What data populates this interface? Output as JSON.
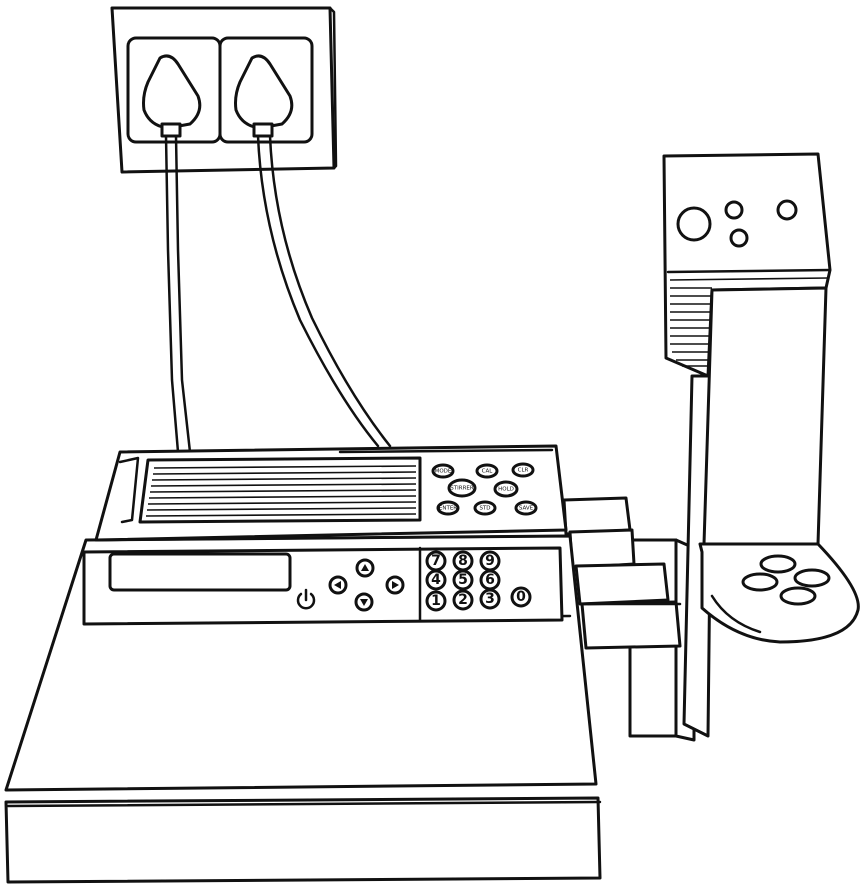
{
  "illustration": {
    "subject": "electrode-meter-with-stand",
    "colors": {
      "line": "#111111",
      "fill": "#ffffff"
    }
  },
  "keypad": {
    "function_keys": [
      "MODE",
      "CAL",
      "CLR",
      "STIRRER",
      "HOLD",
      "ENTER",
      "STD",
      "SAVE"
    ],
    "number_keys": [
      "7",
      "8",
      "9",
      "4",
      "5",
      "6",
      "1",
      "2",
      "3",
      "0"
    ]
  },
  "icons": [
    "power-icon",
    "arrow-up-icon",
    "arrow-down-icon",
    "arrow-left-icon",
    "arrow-right-icon"
  ]
}
